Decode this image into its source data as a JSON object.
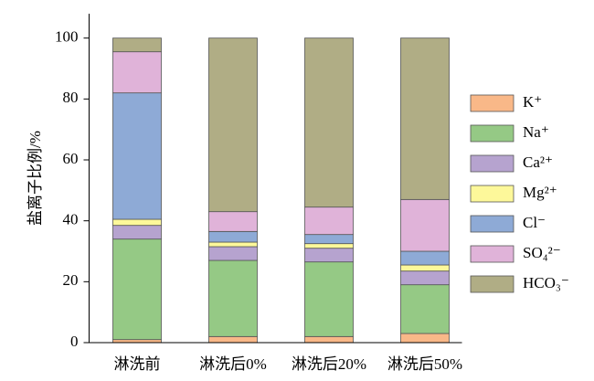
{
  "chart_data": {
    "type": "stacked_bar",
    "y_label": "盐离子比例/%",
    "categories": [
      "淋洗前",
      "淋洗后0%",
      "淋洗后20%",
      "淋洗后50%"
    ],
    "series": [
      {
        "name": "K⁺",
        "color": "#f9b888",
        "values": [
          1,
          2,
          2,
          3
        ]
      },
      {
        "name": "Na⁺",
        "color": "#95c985",
        "values": [
          33,
          25,
          24.5,
          16
        ]
      },
      {
        "name": "Ca²⁺",
        "color": "#b6a3cf",
        "values": [
          4.5,
          4.5,
          4.5,
          4.5
        ]
      },
      {
        "name": "Mg²⁺",
        "color": "#fdf89a",
        "values": [
          2,
          1.5,
          1.5,
          2
        ]
      },
      {
        "name": "Cl⁻",
        "color": "#8eaad6",
        "values": [
          41.5,
          3.5,
          3,
          4.5
        ]
      },
      {
        "name": "SO₄²⁻",
        "color": "#e0b3d9",
        "values": [
          13.5,
          6.5,
          9,
          17
        ]
      },
      {
        "name": "HCO₃⁻",
        "color": "#b0ad85",
        "values": [
          4.5,
          57,
          55.5,
          53
        ]
      }
    ],
    "ylim": [
      0,
      108
    ],
    "yticks": [
      0,
      20,
      40,
      60,
      80,
      100
    ]
  }
}
